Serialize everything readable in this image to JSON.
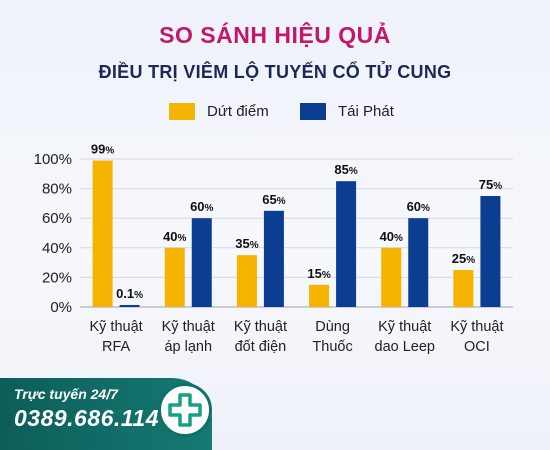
{
  "header": {
    "title": "SO SÁNH HIỆU QUẢ",
    "subtitle": "ĐIỀU TRỊ VIÊM LỘ TUYẾN CỔ TỬ CUNG"
  },
  "colors": {
    "series1": "#f4b400",
    "series2": "#0b3d91",
    "title": "#c4166a",
    "contact_bg": "#0d5d5a"
  },
  "chart_data": {
    "type": "bar",
    "categories": [
      "Kỹ thuật\nRFA",
      "Kỹ thuật\náp lạnh",
      "Kỹ thuật\nđốt điện",
      "Dùng\nThuốc",
      "Kỹ thuật\ndao Leep",
      "Kỹ thuật\nOCI"
    ],
    "series": [
      {
        "name": "Dứt điểm",
        "values": [
          99,
          40,
          35,
          15,
          40,
          25
        ],
        "labels": [
          "99%",
          "40%",
          "35%",
          "15%",
          "40%",
          "25%"
        ]
      },
      {
        "name": "Tái Phát",
        "values": [
          0.1,
          60,
          65,
          85,
          60,
          75
        ],
        "labels": [
          "0.1%",
          "60%",
          "65%",
          "85%",
          "60%",
          "75%"
        ]
      }
    ],
    "yticks": [
      "0%",
      "20%",
      "40%",
      "60%",
      "80%",
      "100%"
    ],
    "ylim": [
      0,
      100
    ],
    "grid": true,
    "legend": "top"
  },
  "contact": {
    "line1": "Trực tuyến 24/7",
    "phone": "0389.686.114"
  },
  "icons": {
    "badge": "medical-cross-icon"
  }
}
